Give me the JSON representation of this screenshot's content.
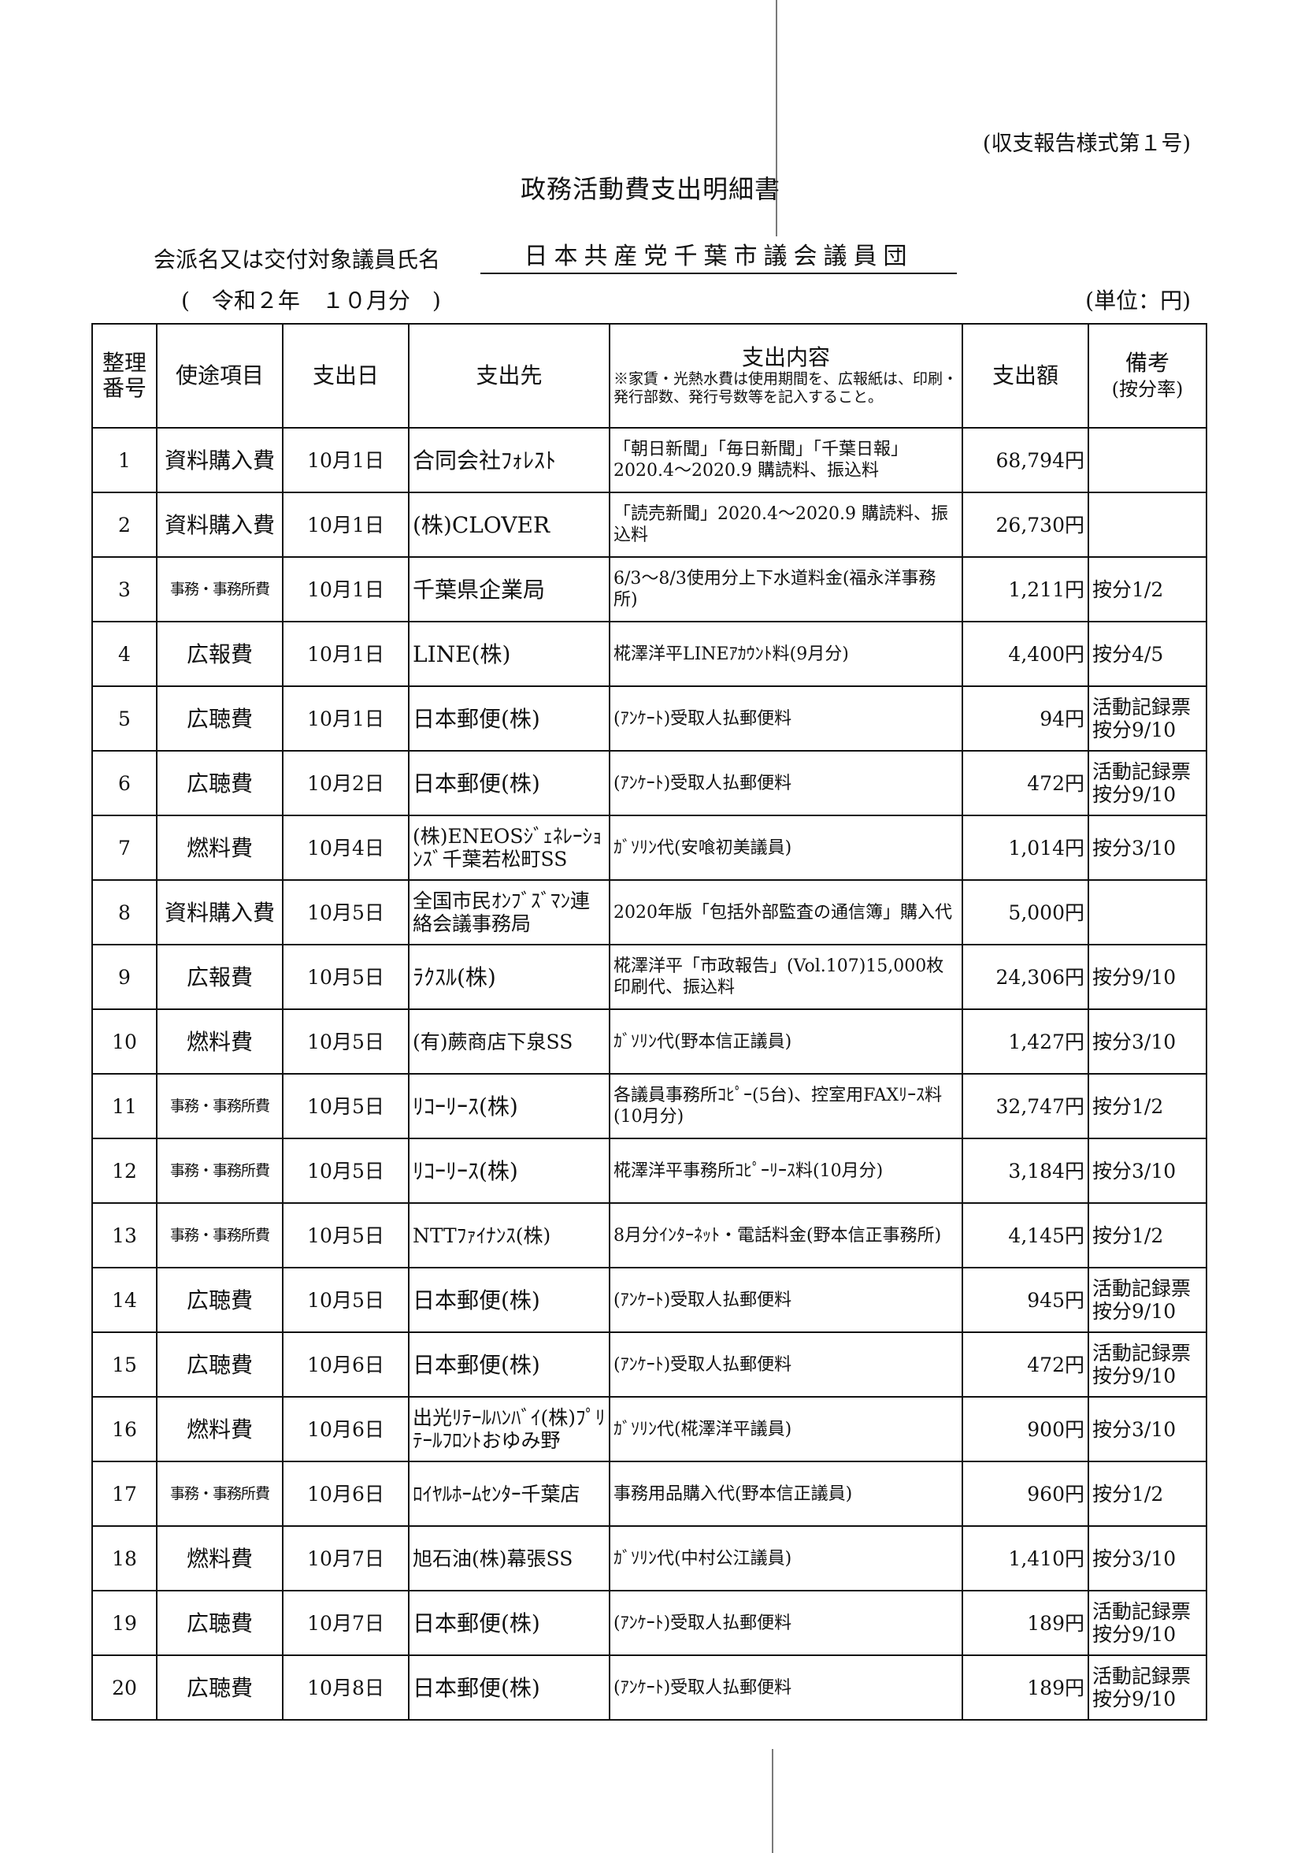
{
  "form_number": "(収支報告様式第１号)",
  "title": "政務活動費支出明細書",
  "group_label": "会派名又は交付対象議員氏名",
  "group_name": "日本共産党千葉市議会議員団",
  "period": "(　令和２年　１０月分　)",
  "unit": "(単位：円)",
  "headers": {
    "no": "整理番号",
    "item": "使途項目",
    "date": "支出日",
    "payee": "支出先",
    "content": "支出内容",
    "content_note": "※家賃・光熱水費は使用期間を、広報紙は、印刷・発行部数、発行号数等を記入すること。",
    "amount": "支出額",
    "remarks": "備考",
    "remarks_sub": "(按分率)"
  },
  "rows": [
    {
      "no": "1",
      "item": "資料購入費",
      "date": "10月1日",
      "payee": "合同会社ﾌｫﾚｽﾄ",
      "content": "「朝日新聞」「毎日新聞」「千葉日報」2020.4～2020.9 購読料、振込料",
      "amount": "68,794円",
      "remarks": ""
    },
    {
      "no": "2",
      "item": "資料購入費",
      "date": "10月1日",
      "payee": "(株)CLOVER",
      "content": "「読売新聞」2020.4～2020.9 購読料、振込料",
      "amount": "26,730円",
      "remarks": ""
    },
    {
      "no": "3",
      "item": "事務・事務所費",
      "date": "10月1日",
      "payee": "千葉県企業局",
      "content": "6/3～8/3使用分上下水道料金(福永洋事務所)",
      "amount": "1,211円",
      "remarks": "按分1/2"
    },
    {
      "no": "4",
      "item": "広報費",
      "date": "10月1日",
      "payee": "LINE(株)",
      "content": "椛澤洋平LINEｱｶｳﾝﾄ料(9月分)",
      "amount": "4,400円",
      "remarks": "按分4/5"
    },
    {
      "no": "5",
      "item": "広聴費",
      "date": "10月1日",
      "payee": "日本郵便(株)",
      "content": "(ｱﾝｹｰﾄ)受取人払郵便料",
      "amount": "94円",
      "remarks": "活動記録票 按分9/10"
    },
    {
      "no": "6",
      "item": "広聴費",
      "date": "10月2日",
      "payee": "日本郵便(株)",
      "content": "(ｱﾝｹｰﾄ)受取人払郵便料",
      "amount": "472円",
      "remarks": "活動記録票 按分9/10"
    },
    {
      "no": "7",
      "item": "燃料費",
      "date": "10月4日",
      "payee": "(株)ENEOSｼﾞｪﾈﾚｰｼｮﾝｽﾞ千葉若松町SS",
      "content": "ｶﾞｿﾘﾝ代(安喰初美議員)",
      "amount": "1,014円",
      "remarks": "按分3/10"
    },
    {
      "no": "8",
      "item": "資料購入費",
      "date": "10月5日",
      "payee": "全国市民ｵﾝﾌﾞｽﾞﾏﾝ連絡会議事務局",
      "content": "2020年版「包括外部監査の通信簿」購入代",
      "amount": "5,000円",
      "remarks": ""
    },
    {
      "no": "9",
      "item": "広報費",
      "date": "10月5日",
      "payee": "ﾗｸｽﾙ(株)",
      "content": "椛澤洋平「市政報告」(Vol.107)15,000枚印刷代、振込料",
      "amount": "24,306円",
      "remarks": "按分9/10"
    },
    {
      "no": "10",
      "item": "燃料費",
      "date": "10月5日",
      "payee": "(有)蕨商店下泉SS",
      "content": "ｶﾞｿﾘﾝ代(野本信正議員)",
      "amount": "1,427円",
      "remarks": "按分3/10"
    },
    {
      "no": "11",
      "item": "事務・事務所費",
      "date": "10月5日",
      "payee": "ﾘｺｰﾘｰｽ(株)",
      "content": "各議員事務所ｺﾋﾟｰ(5台)、控室用FAXﾘｰｽ料(10月分)",
      "amount": "32,747円",
      "remarks": "按分1/2"
    },
    {
      "no": "12",
      "item": "事務・事務所費",
      "date": "10月5日",
      "payee": "ﾘｺｰﾘｰｽ(株)",
      "content": "椛澤洋平事務所ｺﾋﾟｰﾘｰｽ料(10月分)",
      "amount": "3,184円",
      "remarks": "按分3/10"
    },
    {
      "no": "13",
      "item": "事務・事務所費",
      "date": "10月5日",
      "payee": "NTTﾌｧｲﾅﾝｽ(株)",
      "content": "8月分ｲﾝﾀｰﾈｯﾄ・電話料金(野本信正事務所)",
      "amount": "4,145円",
      "remarks": "按分1/2"
    },
    {
      "no": "14",
      "item": "広聴費",
      "date": "10月5日",
      "payee": "日本郵便(株)",
      "content": "(ｱﾝｹｰﾄ)受取人払郵便料",
      "amount": "945円",
      "remarks": "活動記録票 按分9/10"
    },
    {
      "no": "15",
      "item": "広聴費",
      "date": "10月6日",
      "payee": "日本郵便(株)",
      "content": "(ｱﾝｹｰﾄ)受取人払郵便料",
      "amount": "472円",
      "remarks": "活動記録票 按分9/10"
    },
    {
      "no": "16",
      "item": "燃料費",
      "date": "10月6日",
      "payee": "出光ﾘﾃｰﾙﾊﾝﾊﾞｲ(株)ﾌﾟﾘﾃｰﾙﾌﾛﾝﾄおゆみ野",
      "content": "ｶﾞｿﾘﾝ代(椛澤洋平議員)",
      "amount": "900円",
      "remarks": "按分3/10"
    },
    {
      "no": "17",
      "item": "事務・事務所費",
      "date": "10月6日",
      "payee": "ﾛｲﾔﾙﾎｰﾑｾﾝﾀｰ千葉店",
      "content": "事務用品購入代(野本信正議員)",
      "amount": "960円",
      "remarks": "按分1/2"
    },
    {
      "no": "18",
      "item": "燃料費",
      "date": "10月7日",
      "payee": "旭石油(株)幕張SS",
      "content": "ｶﾞｿﾘﾝ代(中村公江議員)",
      "amount": "1,410円",
      "remarks": "按分3/10"
    },
    {
      "no": "19",
      "item": "広聴費",
      "date": "10月7日",
      "payee": "日本郵便(株)",
      "content": "(ｱﾝｹｰﾄ)受取人払郵便料",
      "amount": "189円",
      "remarks": "活動記録票 按分9/10"
    },
    {
      "no": "20",
      "item": "広聴費",
      "date": "10月8日",
      "payee": "日本郵便(株)",
      "content": "(ｱﾝｹｰﾄ)受取人払郵便料",
      "amount": "189円",
      "remarks": "活動記録票 按分9/10"
    }
  ]
}
